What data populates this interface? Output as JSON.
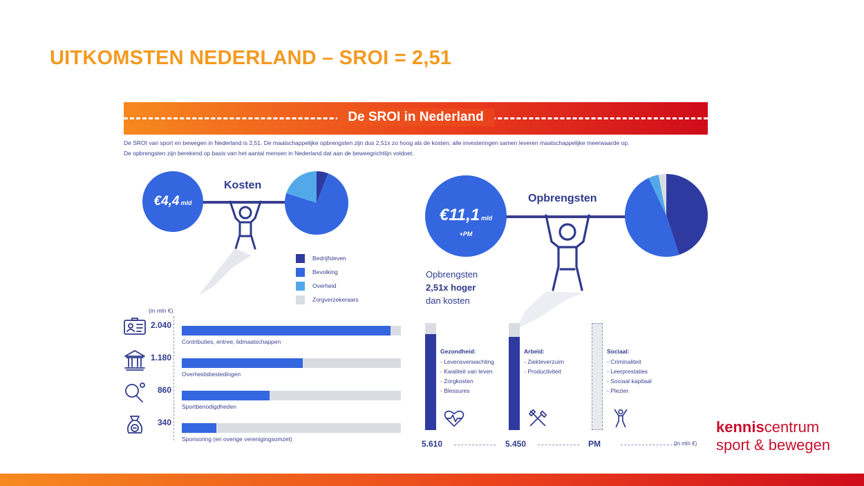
{
  "slide_title": "UITKOMSTEN NEDERLAND – SROI = 2,51",
  "banner_title": "De SROI in Nederland",
  "intro": {
    "line1": "De SROI van sport en bewegen in Nederland is 2,51. De maatschappelijke opbrengsten zijn dus 2,51x zo hoog als de kosten; alle investeringen samen leveren maatschappelijke meerwaarde op.",
    "line2": "De opbrengsten zijn berekend op basis van het aantal mensen in Nederland dat aan de beweegrichtlijn voldoet."
  },
  "kosten": {
    "label": "Kosten",
    "amount": "€4,4",
    "unit": "mld"
  },
  "opbrengsten": {
    "label": "Opbrengsten",
    "amount": "€11,1",
    "unit": "mld",
    "extra": "+PM",
    "note_line1": "Opbrengsten",
    "note_line2": "2,51x hoger",
    "note_line3": "dan kosten"
  },
  "legend": [
    {
      "label": "Bedrijfsleven",
      "color": "#2f3aa0"
    },
    {
      "label": "Bevolking",
      "color": "#3466e0"
    },
    {
      "label": "Overheid",
      "color": "#52a9ea"
    },
    {
      "label": "Zorgverzekeraars",
      "color": "#d9dde3"
    }
  ],
  "pies": {
    "kosten": [
      {
        "share": 0.06,
        "color": "#2f3aa0"
      },
      {
        "share": 0.74,
        "color": "#3466e0"
      },
      {
        "share": 0.2,
        "color": "#52a9ea"
      }
    ],
    "opbrengsten": [
      {
        "share": 0.45,
        "color": "#2f3aa0"
      },
      {
        "share": 0.48,
        "color": "#3466e0"
      },
      {
        "share": 0.04,
        "color": "#52a9ea"
      },
      {
        "share": 0.03,
        "color": "#d9dde3"
      }
    ]
  },
  "cost_unit": "(in mln €)",
  "cost_rows": [
    {
      "value_label": "2.040",
      "value": 2040,
      "label": "Contributies, entree, lidmaatschappen",
      "icon": "membership-card-icon"
    },
    {
      "value_label": "1.180",
      "value": 1180,
      "label": "Overheidsbestedingen",
      "icon": "government-building-icon"
    },
    {
      "value_label": "860",
      "value": 860,
      "label": "Sportbenodigdheden",
      "icon": "table-tennis-icon"
    },
    {
      "value_label": "340",
      "value": 340,
      "label": "Sponsoring (en overige verenigingsomzet)",
      "icon": "money-bag-icon"
    }
  ],
  "cost_scale_max": 2140,
  "benefit_unit": "(in mln €)",
  "benefit_cols": [
    {
      "title": "Gezondheid:",
      "items": [
        "- Levensverwachting",
        "- Kwaliteit van leven",
        "- Zorgkosten",
        "- Blessures"
      ],
      "value_label": "5.610",
      "value": 5610,
      "icon": "heart-pulse-icon"
    },
    {
      "title": "Arbeid:",
      "items": [
        "- Ziekteverzuim",
        "- Productiviteit"
      ],
      "value_label": "5.450",
      "value": 5450,
      "icon": "tools-icon"
    },
    {
      "title": "Sociaal:",
      "items": [
        "- Criminaliteit",
        "- Leerprestaties",
        "- Sociaal kapitaal",
        "- Plezier"
      ],
      "value_label": "PM",
      "value": null,
      "icon": "cheering-person-icon"
    }
  ],
  "benefit_scale_max": 6250,
  "logo": {
    "part1": "kennis",
    "part2": "centrum",
    "line2": "sport & bewegen"
  }
}
